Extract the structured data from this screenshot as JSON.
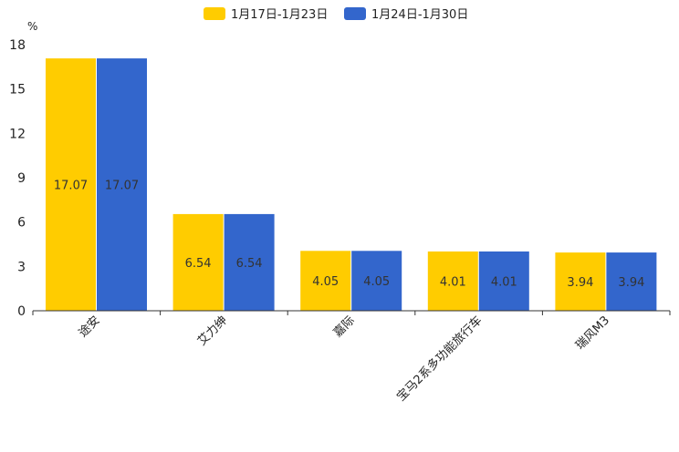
{
  "chart_data": {
    "type": "bar",
    "unit": "%",
    "categories": [
      "途安",
      "艾力绅",
      "嘉际",
      "宝马2系多功能旅行车",
      "瑞风M3"
    ],
    "series": [
      {
        "name": "1月17日-1月23日",
        "color": "#FFCC00",
        "values": [
          17.07,
          6.54,
          4.05,
          4.01,
          3.94
        ]
      },
      {
        "name": "1月24日-1月30日",
        "color": "#3366CC",
        "values": [
          17.07,
          6.54,
          4.05,
          4.01,
          3.94
        ]
      }
    ],
    "yticks": [
      0,
      3,
      6,
      9,
      12,
      15,
      18
    ],
    "ylim": [
      0,
      18
    ],
    "legend_position": "top-center",
    "grid": false
  }
}
